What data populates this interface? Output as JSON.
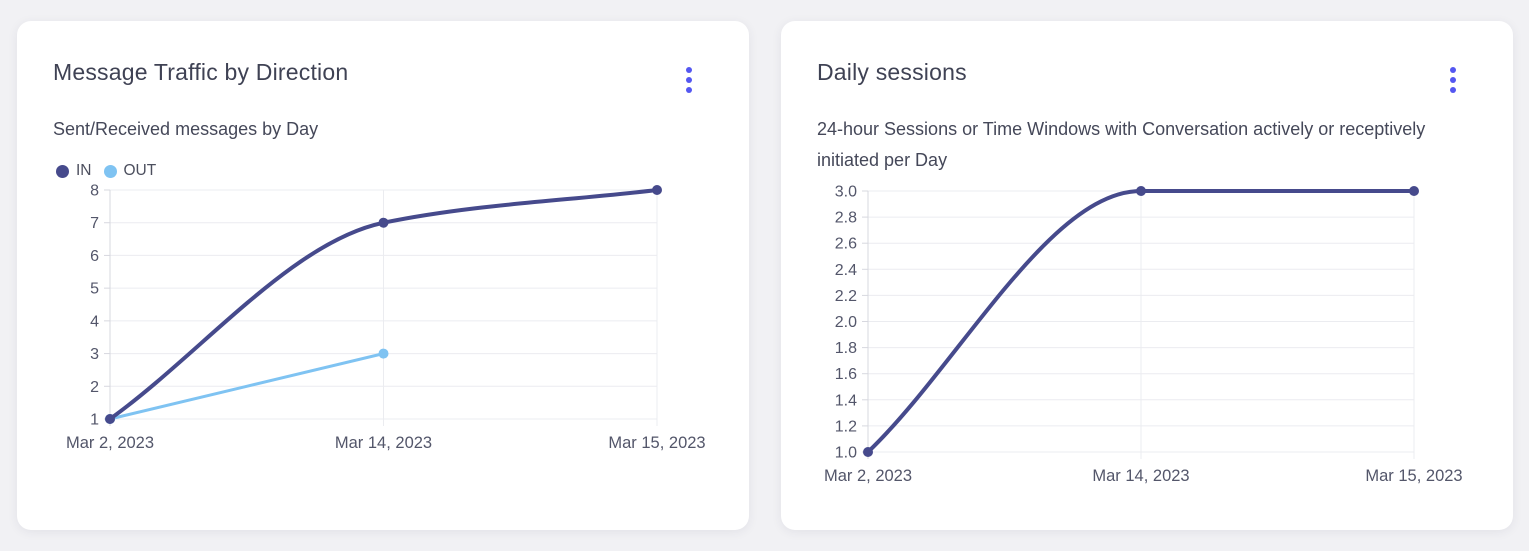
{
  "page": {
    "background": "#f1f1f4",
    "card_background": "#ffffff"
  },
  "colors": {
    "grid": "#ebecf0",
    "axis": "#d7d8df",
    "tick_text": "#53566a",
    "menu_dots": "#5457f1",
    "series_in": "#464a8c",
    "series_out": "#7fc3f2"
  },
  "cards": {
    "message_traffic": {
      "title": "Message Traffic by Direction",
      "subtitle": "Sent/Received messages by Day",
      "menu_icon": "kebab-menu",
      "chart_data": {
        "type": "line",
        "title": "Message Traffic by Direction",
        "subtitle": "Sent/Received messages by Day",
        "categories": [
          "Mar 2, 2023",
          "Mar 14, 2023",
          "Mar 15, 2023"
        ],
        "series": [
          {
            "name": "IN",
            "color": "#464a8c",
            "values": [
              1,
              7,
              8
            ]
          },
          {
            "name": "OUT",
            "color": "#7fc3f2",
            "values": [
              1,
              3,
              null
            ]
          }
        ],
        "ylim": [
          1,
          8
        ],
        "yticks": [
          1,
          2,
          3,
          4,
          5,
          6,
          7,
          8
        ],
        "ytick_labels": [
          "1",
          "2",
          "3",
          "4",
          "5",
          "6",
          "7",
          "8"
        ],
        "grid": true,
        "legend_position": "top-left",
        "curve": "monotone"
      }
    },
    "daily_sessions": {
      "title": "Daily sessions",
      "subtitle": "24-hour Sessions or Time Windows with Conversation actively or receptively initiated per Day",
      "menu_icon": "kebab-menu",
      "chart_data": {
        "type": "line",
        "title": "Daily sessions",
        "subtitle": "24-hour Sessions or Time Windows with Conversation actively or receptively initiated per Day",
        "categories": [
          "Mar 2, 2023",
          "Mar 14, 2023",
          "Mar 15, 2023"
        ],
        "series": [
          {
            "color": "#464a8c",
            "values": [
              1.0,
              3.0,
              3.0
            ]
          }
        ],
        "ylim": [
          1.0,
          3.0
        ],
        "yticks": [
          1.0,
          1.2,
          1.4,
          1.6,
          1.8,
          2.0,
          2.2,
          2.4,
          2.6,
          2.8,
          3.0
        ],
        "ytick_labels": [
          "1.0",
          "1.2",
          "1.4",
          "1.6",
          "1.8",
          "2.0",
          "2.2",
          "2.4",
          "2.6",
          "2.8",
          "3.0"
        ],
        "grid": true,
        "legend_position": "none",
        "curve": "monotone"
      }
    }
  }
}
